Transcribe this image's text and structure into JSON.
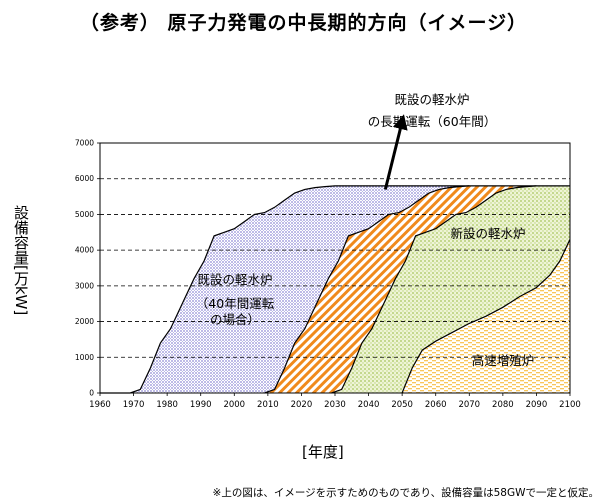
{
  "title": "（参考） 原子力発電の中長期的方向（イメージ）",
  "footnote": "※上の図は、イメージを示すためのものであり、設備容量は58GWで一定と仮定。",
  "annotations": {
    "extension_line1": "既設の軽水炉",
    "extension_line2": "の長期運転（60年間）",
    "new_lwr": "新設の軽水炉",
    "existing_line1": "既設の軽水炉",
    "existing_line2": "（40年間運転",
    "existing_line3": "の場合）",
    "fbr": "高速増殖炉"
  },
  "colors": {
    "existing_40yr": "#b9b6e8",
    "extension_60yr": "#f08a1c",
    "new_lwr": "#c9de8f",
    "fbr": "#fbd37a",
    "gridline": "#000000",
    "outline": "#000000"
  },
  "chart_data": {
    "type": "area",
    "title": "（参考） 原子力発電の中長期的方向（イメージ）",
    "xlabel": "[年度]",
    "ylabel": "設備容量[万kW]",
    "xlim": [
      1960,
      2100
    ],
    "ylim": [
      0,
      7000
    ],
    "x_ticks": [
      1960,
      1970,
      1980,
      1990,
      2000,
      2010,
      2020,
      2030,
      2040,
      2050,
      2060,
      2070,
      2080,
      2090,
      2100
    ],
    "y_ticks": [
      0,
      1000,
      2000,
      3000,
      4000,
      5000,
      6000,
      7000
    ],
    "grid": "horizontal dashed",
    "legend": "none",
    "curves": {
      "existing_40yr_total": {
        "x": [
          1960,
          1969,
          1972,
          1975,
          1978,
          1981,
          1985,
          1988,
          1991,
          1994,
          1997,
          2000,
          2003,
          2006,
          2009,
          2012,
          2015,
          2018,
          2021,
          2024,
          2027,
          2030,
          2100
        ],
        "y": [
          0,
          0,
          100,
          700,
          1400,
          1800,
          2600,
          3200,
          3700,
          4400,
          4500,
          4600,
          4800,
          5000,
          5050,
          5200,
          5400,
          5600,
          5700,
          5750,
          5780,
          5800,
          5800
        ]
      },
      "retirement_40yr": {
        "x": [
          2009,
          2012,
          2015,
          2018,
          2021,
          2025,
          2028,
          2031,
          2034,
          2037,
          2040,
          2043,
          2046,
          2049,
          2052,
          2055,
          2058,
          2061,
          2064,
          2067,
          2070
        ],
        "y": [
          0,
          100,
          700,
          1400,
          1800,
          2600,
          3200,
          3700,
          4400,
          4500,
          4600,
          4800,
          5000,
          5050,
          5200,
          5400,
          5600,
          5700,
          5750,
          5780,
          5800
        ]
      },
      "retirement_60yr": {
        "x": [
          2029,
          2032,
          2035,
          2038,
          2041,
          2045,
          2048,
          2051,
          2054,
          2057,
          2060,
          2063,
          2066,
          2069,
          2072,
          2075,
          2078,
          2081,
          2084,
          2087,
          2090
        ],
        "y": [
          0,
          100,
          700,
          1400,
          1800,
          2600,
          3200,
          3700,
          4400,
          4500,
          4600,
          4800,
          5000,
          5050,
          5200,
          5400,
          5600,
          5700,
          5750,
          5780,
          5800
        ]
      },
      "fbr_top": {
        "x": [
          2050,
          2053,
          2056,
          2060,
          2065,
          2070,
          2075,
          2080,
          2085,
          2090,
          2094,
          2097,
          2100
        ],
        "y": [
          0,
          700,
          1200,
          1450,
          1700,
          1950,
          2150,
          2400,
          2700,
          2950,
          3300,
          3700,
          4300
        ]
      }
    },
    "regions": [
      {
        "name": "既設の軽水炉（40年間運転の場合）",
        "between": [
          "retirement_40yr",
          "existing_40yr_total"
        ]
      },
      {
        "name": "既設の軽水炉の長期運転（60年間）",
        "between": [
          "retirement_60yr",
          "retirement_40yr"
        ]
      },
      {
        "name": "新設の軽水炉",
        "between": [
          "fbr_top",
          "retirement_60yr"
        ]
      },
      {
        "name": "高速増殖炉",
        "between": [
          "zero",
          "fbr_top"
        ]
      }
    ],
    "arrow": {
      "from": [
        2045,
        5700
      ],
      "to": [
        2050,
        7600
      ]
    }
  }
}
